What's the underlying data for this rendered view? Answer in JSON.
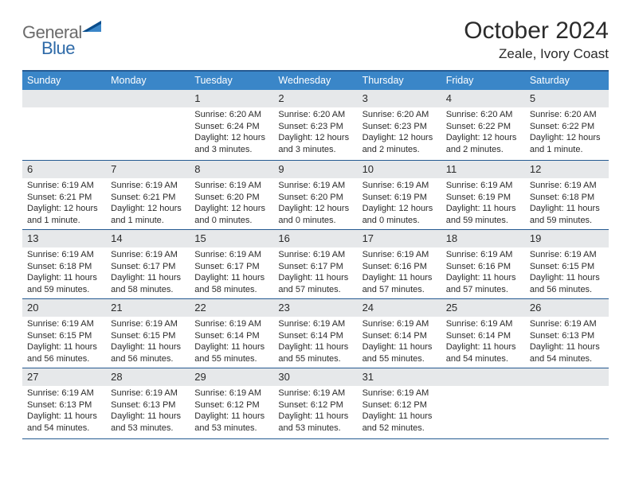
{
  "brand": {
    "general": "General",
    "blue": "Blue"
  },
  "title": {
    "month": "October 2024",
    "location": "Zeale, Ivory Coast"
  },
  "colors": {
    "header_bg": "#3a86c8",
    "border": "#255a91",
    "daynum_bg": "#e6e8ea",
    "text": "#2b2b2b",
    "logo_grey": "#6b6b6b",
    "logo_blue": "#2e6aa8",
    "logo_tri_dark": "#0a4d8c",
    "logo_tri_light": "#3a86c8"
  },
  "weekdays": [
    "Sunday",
    "Monday",
    "Tuesday",
    "Wednesday",
    "Thursday",
    "Friday",
    "Saturday"
  ],
  "weeks": [
    [
      null,
      null,
      {
        "n": "1",
        "sr": "Sunrise: 6:20 AM",
        "ss": "Sunset: 6:24 PM",
        "dl": "Daylight: 12 hours and 3 minutes."
      },
      {
        "n": "2",
        "sr": "Sunrise: 6:20 AM",
        "ss": "Sunset: 6:23 PM",
        "dl": "Daylight: 12 hours and 3 minutes."
      },
      {
        "n": "3",
        "sr": "Sunrise: 6:20 AM",
        "ss": "Sunset: 6:23 PM",
        "dl": "Daylight: 12 hours and 2 minutes."
      },
      {
        "n": "4",
        "sr": "Sunrise: 6:20 AM",
        "ss": "Sunset: 6:22 PM",
        "dl": "Daylight: 12 hours and 2 minutes."
      },
      {
        "n": "5",
        "sr": "Sunrise: 6:20 AM",
        "ss": "Sunset: 6:22 PM",
        "dl": "Daylight: 12 hours and 1 minute."
      }
    ],
    [
      {
        "n": "6",
        "sr": "Sunrise: 6:19 AM",
        "ss": "Sunset: 6:21 PM",
        "dl": "Daylight: 12 hours and 1 minute."
      },
      {
        "n": "7",
        "sr": "Sunrise: 6:19 AM",
        "ss": "Sunset: 6:21 PM",
        "dl": "Daylight: 12 hours and 1 minute."
      },
      {
        "n": "8",
        "sr": "Sunrise: 6:19 AM",
        "ss": "Sunset: 6:20 PM",
        "dl": "Daylight: 12 hours and 0 minutes."
      },
      {
        "n": "9",
        "sr": "Sunrise: 6:19 AM",
        "ss": "Sunset: 6:20 PM",
        "dl": "Daylight: 12 hours and 0 minutes."
      },
      {
        "n": "10",
        "sr": "Sunrise: 6:19 AM",
        "ss": "Sunset: 6:19 PM",
        "dl": "Daylight: 12 hours and 0 minutes."
      },
      {
        "n": "11",
        "sr": "Sunrise: 6:19 AM",
        "ss": "Sunset: 6:19 PM",
        "dl": "Daylight: 11 hours and 59 minutes."
      },
      {
        "n": "12",
        "sr": "Sunrise: 6:19 AM",
        "ss": "Sunset: 6:18 PM",
        "dl": "Daylight: 11 hours and 59 minutes."
      }
    ],
    [
      {
        "n": "13",
        "sr": "Sunrise: 6:19 AM",
        "ss": "Sunset: 6:18 PM",
        "dl": "Daylight: 11 hours and 59 minutes."
      },
      {
        "n": "14",
        "sr": "Sunrise: 6:19 AM",
        "ss": "Sunset: 6:17 PM",
        "dl": "Daylight: 11 hours and 58 minutes."
      },
      {
        "n": "15",
        "sr": "Sunrise: 6:19 AM",
        "ss": "Sunset: 6:17 PM",
        "dl": "Daylight: 11 hours and 58 minutes."
      },
      {
        "n": "16",
        "sr": "Sunrise: 6:19 AM",
        "ss": "Sunset: 6:17 PM",
        "dl": "Daylight: 11 hours and 57 minutes."
      },
      {
        "n": "17",
        "sr": "Sunrise: 6:19 AM",
        "ss": "Sunset: 6:16 PM",
        "dl": "Daylight: 11 hours and 57 minutes."
      },
      {
        "n": "18",
        "sr": "Sunrise: 6:19 AM",
        "ss": "Sunset: 6:16 PM",
        "dl": "Daylight: 11 hours and 57 minutes."
      },
      {
        "n": "19",
        "sr": "Sunrise: 6:19 AM",
        "ss": "Sunset: 6:15 PM",
        "dl": "Daylight: 11 hours and 56 minutes."
      }
    ],
    [
      {
        "n": "20",
        "sr": "Sunrise: 6:19 AM",
        "ss": "Sunset: 6:15 PM",
        "dl": "Daylight: 11 hours and 56 minutes."
      },
      {
        "n": "21",
        "sr": "Sunrise: 6:19 AM",
        "ss": "Sunset: 6:15 PM",
        "dl": "Daylight: 11 hours and 56 minutes."
      },
      {
        "n": "22",
        "sr": "Sunrise: 6:19 AM",
        "ss": "Sunset: 6:14 PM",
        "dl": "Daylight: 11 hours and 55 minutes."
      },
      {
        "n": "23",
        "sr": "Sunrise: 6:19 AM",
        "ss": "Sunset: 6:14 PM",
        "dl": "Daylight: 11 hours and 55 minutes."
      },
      {
        "n": "24",
        "sr": "Sunrise: 6:19 AM",
        "ss": "Sunset: 6:14 PM",
        "dl": "Daylight: 11 hours and 55 minutes."
      },
      {
        "n": "25",
        "sr": "Sunrise: 6:19 AM",
        "ss": "Sunset: 6:14 PM",
        "dl": "Daylight: 11 hours and 54 minutes."
      },
      {
        "n": "26",
        "sr": "Sunrise: 6:19 AM",
        "ss": "Sunset: 6:13 PM",
        "dl": "Daylight: 11 hours and 54 minutes."
      }
    ],
    [
      {
        "n": "27",
        "sr": "Sunrise: 6:19 AM",
        "ss": "Sunset: 6:13 PM",
        "dl": "Daylight: 11 hours and 54 minutes."
      },
      {
        "n": "28",
        "sr": "Sunrise: 6:19 AM",
        "ss": "Sunset: 6:13 PM",
        "dl": "Daylight: 11 hours and 53 minutes."
      },
      {
        "n": "29",
        "sr": "Sunrise: 6:19 AM",
        "ss": "Sunset: 6:12 PM",
        "dl": "Daylight: 11 hours and 53 minutes."
      },
      {
        "n": "30",
        "sr": "Sunrise: 6:19 AM",
        "ss": "Sunset: 6:12 PM",
        "dl": "Daylight: 11 hours and 53 minutes."
      },
      {
        "n": "31",
        "sr": "Sunrise: 6:19 AM",
        "ss": "Sunset: 6:12 PM",
        "dl": "Daylight: 11 hours and 52 minutes."
      },
      null,
      null
    ]
  ]
}
